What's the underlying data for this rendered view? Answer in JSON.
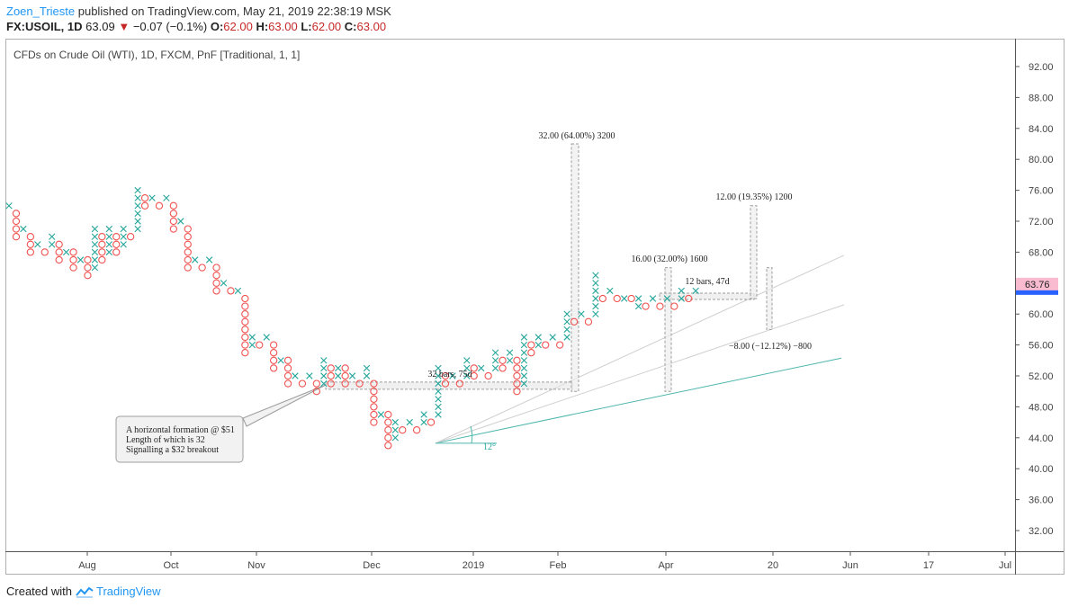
{
  "header": {
    "user": "Zoen_Trieste",
    "published_text": "published on TradingView.com, May 21, 2019 22:38:19 MSK",
    "symbol": "FX:USOIL, 1D",
    "last": "63.09",
    "change": "−0.07 (−0.1%)",
    "o_label": "O:",
    "o_value": "62.00",
    "h_label": "H:",
    "h_value": "63.00",
    "l_label": "L:",
    "l_value": "62.00",
    "c_label": "C:",
    "c_value": "63.00"
  },
  "footer": {
    "created_with": "Created with",
    "brand": "TradingView"
  },
  "colors": {
    "up": "#26a69a",
    "down": "#ef5350",
    "price_tag_bg": "#f8bbd0",
    "price_tag_line": "#2962ff"
  },
  "chart_data": {
    "type": "point-and-figure",
    "title": "CFDs on Crude Oil (WTI), 1D, FXCM, PnF [Traditional, 1, 1]",
    "box_size": 1,
    "reversal": 1,
    "y_ticks": [
      "92.00",
      "88.00",
      "84.00",
      "80.00",
      "76.00",
      "72.00",
      "68.00",
      "64.00",
      "60.00",
      "56.00",
      "52.00",
      "48.00",
      "44.00",
      "40.00",
      "36.00",
      "32.00"
    ],
    "ylim": [
      28.5,
      97
    ],
    "x_tick_labels": [
      "Aug",
      "Oct",
      "Nov",
      "Dec",
      "2019",
      "Feb",
      "Apr",
      "20",
      "Jun",
      "17",
      "Jul"
    ],
    "current_price": "63.76",
    "columns": [
      {
        "t": "X",
        "lo": 74,
        "hi": 74
      },
      {
        "t": "O",
        "lo": 70,
        "hi": 73
      },
      {
        "t": "X",
        "lo": 71,
        "hi": 71
      },
      {
        "t": "O",
        "lo": 68,
        "hi": 70
      },
      {
        "t": "X",
        "lo": 69,
        "hi": 69
      },
      {
        "t": "O",
        "lo": 68,
        "hi": 68
      },
      {
        "t": "X",
        "lo": 69,
        "hi": 70
      },
      {
        "t": "O",
        "lo": 67,
        "hi": 69
      },
      {
        "t": "X",
        "lo": 68,
        "hi": 68
      },
      {
        "t": "O",
        "lo": 66,
        "hi": 68
      },
      {
        "t": "X",
        "lo": 67,
        "hi": 67
      },
      {
        "t": "O",
        "lo": 65,
        "hi": 67
      },
      {
        "t": "X",
        "lo": 66,
        "hi": 71
      },
      {
        "t": "O",
        "lo": 67,
        "hi": 70
      },
      {
        "t": "X",
        "lo": 68,
        "hi": 71
      },
      {
        "t": "O",
        "lo": 68,
        "hi": 70
      },
      {
        "t": "X",
        "lo": 69,
        "hi": 71
      },
      {
        "t": "O",
        "lo": 70,
        "hi": 70
      },
      {
        "t": "X",
        "lo": 71,
        "hi": 76
      },
      {
        "t": "O",
        "lo": 74,
        "hi": 75
      },
      {
        "t": "X",
        "lo": 75,
        "hi": 75
      },
      {
        "t": "O",
        "lo": 74,
        "hi": 74
      },
      {
        "t": "X",
        "lo": 75,
        "hi": 75
      },
      {
        "t": "O",
        "lo": 71,
        "hi": 74
      },
      {
        "t": "X",
        "lo": 72,
        "hi": 72
      },
      {
        "t": "O",
        "lo": 66,
        "hi": 71
      },
      {
        "t": "X",
        "lo": 67,
        "hi": 67
      },
      {
        "t": "O",
        "lo": 66,
        "hi": 66
      },
      {
        "t": "X",
        "lo": 67,
        "hi": 67
      },
      {
        "t": "O",
        "lo": 63,
        "hi": 66
      },
      {
        "t": "X",
        "lo": 64,
        "hi": 64
      },
      {
        "t": "O",
        "lo": 63,
        "hi": 63
      },
      {
        "t": "X",
        "lo": 63,
        "hi": 63
      },
      {
        "t": "O",
        "lo": 55,
        "hi": 62
      },
      {
        "t": "X",
        "lo": 56,
        "hi": 57
      },
      {
        "t": "O",
        "lo": 56,
        "hi": 56
      },
      {
        "t": "X",
        "lo": 57,
        "hi": 57
      },
      {
        "t": "O",
        "lo": 53,
        "hi": 56
      },
      {
        "t": "X",
        "lo": 54,
        "hi": 54
      },
      {
        "t": "O",
        "lo": 51,
        "hi": 54
      },
      {
        "t": "X",
        "lo": 52,
        "hi": 52
      },
      {
        "t": "O",
        "lo": 51,
        "hi": 51
      },
      {
        "t": "X",
        "lo": 52,
        "hi": 52
      },
      {
        "t": "O",
        "lo": 50,
        "hi": 51
      },
      {
        "t": "X",
        "lo": 51,
        "hi": 54
      },
      {
        "t": "O",
        "lo": 51,
        "hi": 53
      },
      {
        "t": "X",
        "lo": 52,
        "hi": 53
      },
      {
        "t": "O",
        "lo": 51,
        "hi": 53
      },
      {
        "t": "X",
        "lo": 52,
        "hi": 52
      },
      {
        "t": "O",
        "lo": 51,
        "hi": 51
      },
      {
        "t": "X",
        "lo": 52,
        "hi": 53
      },
      {
        "t": "O",
        "lo": 46,
        "hi": 51
      },
      {
        "t": "X",
        "lo": 47,
        "hi": 47
      },
      {
        "t": "O",
        "lo": 43,
        "hi": 47
      },
      {
        "t": "X",
        "lo": 44,
        "hi": 46
      },
      {
        "t": "O",
        "lo": 45,
        "hi": 45
      },
      {
        "t": "X",
        "lo": 46,
        "hi": 46
      },
      {
        "t": "O",
        "lo": 45,
        "hi": 45
      },
      {
        "t": "X",
        "lo": 46,
        "hi": 47
      },
      {
        "t": "O",
        "lo": 46,
        "hi": 46
      },
      {
        "t": "X",
        "lo": 47,
        "hi": 53
      },
      {
        "t": "O",
        "lo": 51,
        "hi": 52
      },
      {
        "t": "X",
        "lo": 52,
        "hi": 52
      },
      {
        "t": "O",
        "lo": 51,
        "hi": 51
      },
      {
        "t": "X",
        "lo": 52,
        "hi": 54
      },
      {
        "t": "O",
        "lo": 52,
        "hi": 53
      },
      {
        "t": "X",
        "lo": 53,
        "hi": 53
      },
      {
        "t": "O",
        "lo": 52,
        "hi": 52
      },
      {
        "t": "X",
        "lo": 53,
        "hi": 55
      },
      {
        "t": "O",
        "lo": 53,
        "hi": 54
      },
      {
        "t": "X",
        "lo": 54,
        "hi": 55
      },
      {
        "t": "O",
        "lo": 50,
        "hi": 54
      },
      {
        "t": "X",
        "lo": 51,
        "hi": 57
      },
      {
        "t": "O",
        "lo": 55,
        "hi": 56
      },
      {
        "t": "X",
        "lo": 56,
        "hi": 57
      },
      {
        "t": "O",
        "lo": 56,
        "hi": 56
      },
      {
        "t": "X",
        "lo": 57,
        "hi": 57
      },
      {
        "t": "O",
        "lo": 56,
        "hi": 56
      },
      {
        "t": "X",
        "lo": 57,
        "hi": 60
      },
      {
        "t": "O",
        "lo": 59,
        "hi": 59
      },
      {
        "t": "X",
        "lo": 60,
        "hi": 60
      },
      {
        "t": "O",
        "lo": 59,
        "hi": 59
      },
      {
        "t": "X",
        "lo": 60,
        "hi": 65
      },
      {
        "t": "O",
        "lo": 62,
        "hi": 62
      },
      {
        "t": "X",
        "lo": 63,
        "hi": 63
      },
      {
        "t": "O",
        "lo": 62,
        "hi": 62
      },
      {
        "t": "X",
        "lo": 62,
        "hi": 62
      },
      {
        "t": "O",
        "lo": 62,
        "hi": 62
      },
      {
        "t": "X",
        "lo": 61,
        "hi": 62
      },
      {
        "t": "O",
        "lo": 61,
        "hi": 61
      },
      {
        "t": "X",
        "lo": 62,
        "hi": 62
      },
      {
        "t": "O",
        "lo": 61,
        "hi": 61
      },
      {
        "t": "X",
        "lo": 62,
        "hi": 62
      },
      {
        "t": "O",
        "lo": 61,
        "hi": 61
      },
      {
        "t": "X",
        "lo": 62,
        "hi": 63
      },
      {
        "t": "O",
        "lo": 62,
        "hi": 62
      },
      {
        "t": "X",
        "lo": 63,
        "hi": 63
      }
    ],
    "annotations": {
      "measure_main": "32.00 (64.00%) 3200",
      "bars_main": "32 bars, 75d",
      "measure_top": "12.00 (19.35%) 1200",
      "measure_mid": "16.00 (32.00%) 1600",
      "bars_small": "12 bars, 47d",
      "measure_down": "−8.00 (−12.12%) −800",
      "angle": "12°",
      "callout_line1": "A horizontal formation @ $51",
      "callout_line2": "Length of which is 32",
      "callout_line3": "Signalling a $32 breakout"
    }
  }
}
